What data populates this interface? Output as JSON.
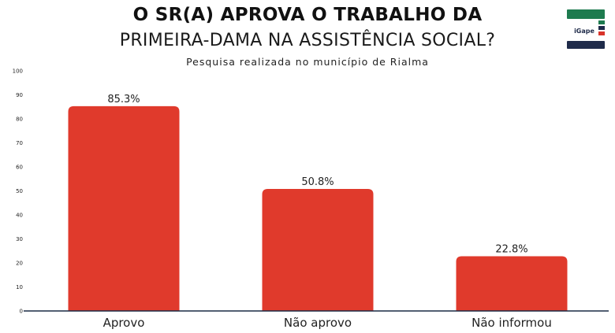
{
  "header": {
    "title_line1": "O SR(A) APROVA O TRABALHO DA",
    "title_line2": "PRIMEIRA-DAMA NA ASSISTÊNCIA SOCIAL?",
    "subtitle": "Pesquisa realizada no município de Rialma"
  },
  "logo": {
    "text": "iGape"
  },
  "colors": {
    "bar": "#e03a2c",
    "axis": "#1a2a44",
    "logo_green": "#1e7b4f",
    "logo_navy": "#1f2b4a",
    "logo_red": "#d8342a"
  },
  "chart_data": {
    "type": "bar",
    "categories": [
      "Aprovo",
      "Não aprovo",
      "Não informou"
    ],
    "values": [
      85.3,
      50.8,
      22.8
    ],
    "value_labels": [
      "85.3%",
      "50.8%",
      "22.8%"
    ],
    "ylim": [
      0,
      100
    ],
    "yticks": [
      "0",
      "10",
      "20",
      "30",
      "40",
      "50",
      "60",
      "70",
      "80",
      "90",
      "100"
    ],
    "grid": false
  }
}
